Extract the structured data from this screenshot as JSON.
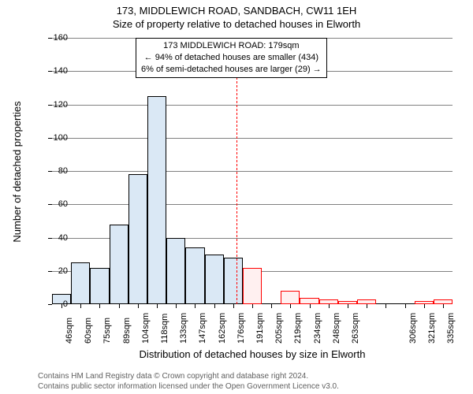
{
  "title": "173, MIDDLEWICH ROAD, SANDBACH, CW11 1EH",
  "subtitle": "Size of property relative to detached houses in Elworth",
  "info_box": {
    "line1": "173 MIDDLEWICH ROAD: 179sqm",
    "line2": "← 94% of detached houses are smaller (434)",
    "line3": "6% of semi-detached houses are larger (29) →"
  },
  "chart": {
    "type": "histogram",
    "y_axis": {
      "title": "Number of detached properties",
      "min": 0,
      "max": 160,
      "tick_step": 20
    },
    "x_axis": {
      "title": "Distribution of detached houses by size in Elworth"
    },
    "x_labels": [
      "46sqm",
      "60sqm",
      "75sqm",
      "89sqm",
      "104sqm",
      "118sqm",
      "133sqm",
      "147sqm",
      "162sqm",
      "176sqm",
      "191sqm",
      "205sqm",
      "219sqm",
      "234sqm",
      "248sqm",
      "263sqm",
      "",
      "",
      "306sqm",
      "321sqm",
      "335sqm"
    ],
    "values": [
      6,
      25,
      22,
      48,
      78,
      125,
      40,
      34,
      30,
      28,
      22,
      0,
      8,
      4,
      3,
      2,
      3,
      0,
      0,
      2,
      3
    ],
    "reference_x_value": 179,
    "x_range_min": 39,
    "x_range_max": 343,
    "bar_fill": "#dae8f5",
    "bar_stroke": "#000000",
    "highlight_threshold": 179,
    "highlight_fill": "#fff0f0",
    "highlight_stroke": "#ff0000",
    "grid_color": "#808080",
    "background": "#ffffff",
    "ref_line_color": "#ff0000",
    "label_fontsize": 11,
    "title_fontsize": 13
  },
  "footer": {
    "line1": "Contains HM Land Registry data © Crown copyright and database right 2024.",
    "line2": "Contains public sector information licensed under the Open Government Licence v3.0."
  }
}
